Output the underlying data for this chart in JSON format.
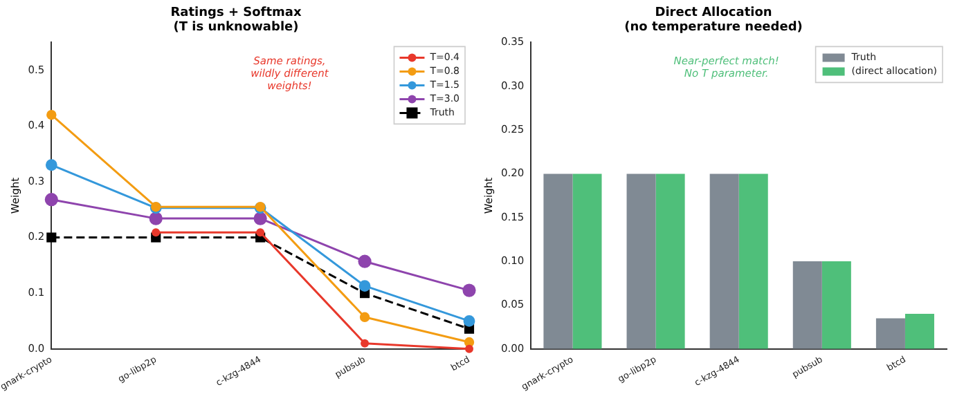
{
  "chart_data": [
    {
      "type": "line",
      "title": "Ratings + Softmax\n(T is unknowable)",
      "ylabel": "Weight",
      "categories": [
        "gnark-crypto",
        "go-libp2p",
        "c-kzg-4844",
        "pubsub",
        "btcd"
      ],
      "series": [
        {
          "name": "T=0.4",
          "color": "#e8382b",
          "values": [
            null,
            0.209,
            0.209,
            0.01,
            0.0
          ],
          "marker": "circle",
          "line_style": "solid"
        },
        {
          "name": "T=0.8",
          "color": "#f39c12",
          "values": [
            0.42,
            0.255,
            0.255,
            0.057,
            0.012
          ],
          "marker": "circle",
          "line_style": "solid"
        },
        {
          "name": "T=1.5",
          "color": "#3498db",
          "values": [
            0.33,
            0.253,
            0.253,
            0.113,
            0.05
          ],
          "marker": "circle",
          "line_style": "solid"
        },
        {
          "name": "T=3.0",
          "color": "#8e44ad",
          "values": [
            0.268,
            0.234,
            0.234,
            0.157,
            0.105
          ],
          "marker": "circle",
          "line_style": "solid"
        },
        {
          "name": "Truth",
          "color": "#000000",
          "values": [
            0.2,
            0.2,
            0.2,
            0.1,
            0.036
          ],
          "marker": "square",
          "line_style": "dashed"
        }
      ],
      "ylim": [
        0,
        0.55
      ],
      "yticks": [
        {
          "value": 0,
          "label": "0.0"
        },
        0.1,
        0.2,
        0.3,
        0.4,
        0.5
      ],
      "grid": false,
      "legend": "top right",
      "annotations": [
        "Same ratings,\nwildly different\nweights!"
      ]
    },
    {
      "type": "bar",
      "title": "Direct Allocation\n(no temperature needed)",
      "ylabel": "Weight",
      "categories": [
        "gnark-crypto",
        "go-libp2p",
        "c-kzg-4844",
        "pubsub",
        "btcd"
      ],
      "series": [
        {
          "name": "Truth",
          "color": "#808a94",
          "values": [
            0.2,
            0.2,
            0.2,
            0.1,
            0.035
          ]
        },
        {
          "name": "(direct allocation)",
          "color": "#4fbf7a",
          "values": [
            0.2,
            0.2,
            0.2,
            0.1,
            0.04
          ]
        }
      ],
      "ylim": [
        0,
        0.35
      ],
      "yticks": [
        {
          "value": 0,
          "label": "0.00"
        },
        0.05,
        {
          "value": 0.1,
          "label": "0.10"
        },
        0.15,
        {
          "value": 0.2,
          "label": "0.20"
        },
        0.25,
        {
          "value": 0.3,
          "label": "0.30"
        },
        0.35
      ],
      "grid": false,
      "legend": "top right",
      "annotations": [
        "Near-perfect match!\nNo T parameter."
      ]
    }
  ]
}
